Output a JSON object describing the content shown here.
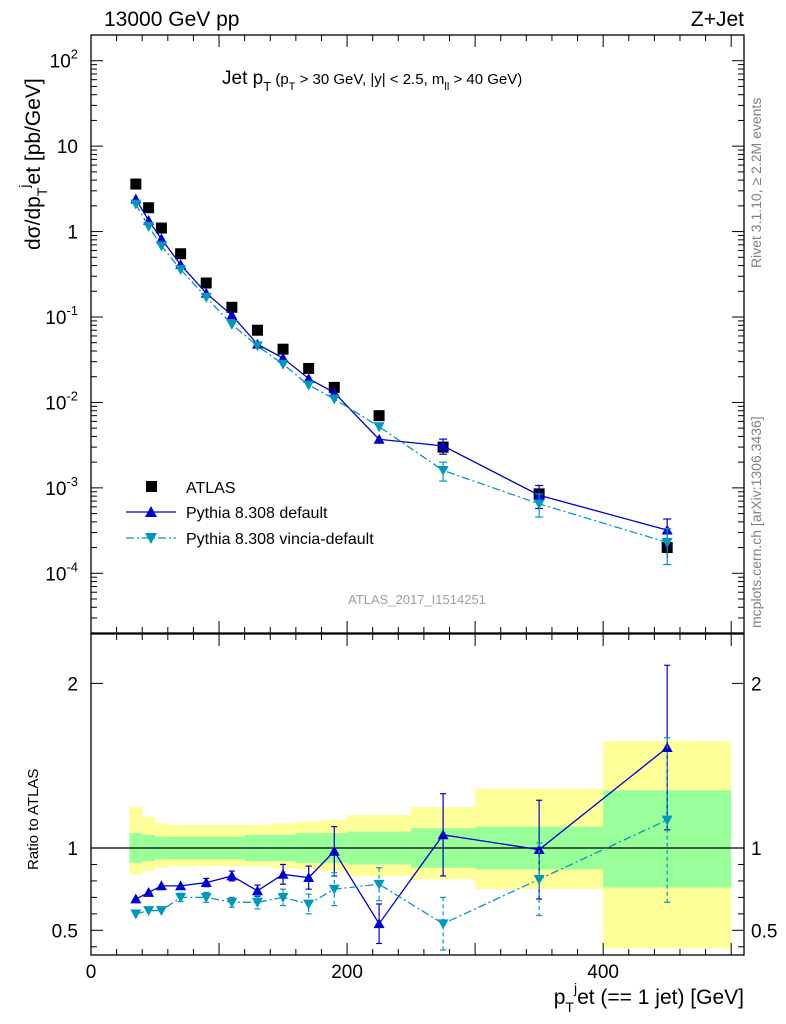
{
  "header": {
    "left": "13000 GeV pp",
    "right": "Z+Jet"
  },
  "side_labels": {
    "rivet": "Rivet 3.1.10, ≥ 2.2M events",
    "mcplots": "mcplots.cern.ch [arXiv:1306.3436]"
  },
  "watermark": "ATLAS_2017_I1514251",
  "colors": {
    "atlas": "#000000",
    "pythia_default": "#0000cc",
    "pythia_vincia": "#0099bb",
    "band_yellow": "#ffff99",
    "band_green": "#99ff99"
  },
  "chart_data": [
    {
      "type": "scatter",
      "panel": "main",
      "title": "Jet pT (pT > 30 GeV, |y| < 2.5, mll > 40 GeV)",
      "ylabel": "dσ/dpT j et [pb/GeV]",
      "yscale": "log",
      "xlim": [
        0,
        510
      ],
      "ylim": [
        2e-05,
        200
      ],
      "ytick_labels": [
        "10^-4",
        "10^-3",
        "10^-2",
        "10^-1",
        "1",
        "10",
        "10^2"
      ],
      "legend_position": "bottom-left",
      "x": [
        35,
        45,
        55,
        70,
        90,
        110,
        130,
        150,
        170,
        190,
        225,
        275,
        350,
        450
      ],
      "series": [
        {
          "name": "ATLAS",
          "marker": "square",
          "values": [
            3.6,
            1.9,
            1.1,
            0.55,
            0.25,
            0.13,
            0.07,
            0.042,
            0.025,
            0.015,
            0.007,
            0.003,
            0.00085,
            0.0002
          ],
          "yerr": [
            0.05,
            0.05,
            0.05,
            0.05,
            0.05,
            0.05,
            0.05,
            0.05,
            0.05,
            0.05,
            0.05,
            0.1,
            0.15,
            0.25
          ]
        },
        {
          "name": "Pythia 8.308 default",
          "marker": "triangle-up",
          "linestyle": "solid",
          "values": [
            2.4,
            1.35,
            0.82,
            0.41,
            0.19,
            0.105,
            0.048,
            0.033,
            0.019,
            0.013,
            0.0037,
            0.0031,
            0.00082,
            0.00032
          ],
          "yerr": [
            0.04,
            0.04,
            0.04,
            0.04,
            0.05,
            0.05,
            0.06,
            0.07,
            0.08,
            0.1,
            0.12,
            0.2,
            0.3,
            0.35
          ]
        },
        {
          "name": "Pythia 8.308 vincia-default",
          "marker": "triangle-down",
          "linestyle": "dashdot",
          "values": [
            2.1,
            1.15,
            0.68,
            0.36,
            0.17,
            0.082,
            0.046,
            0.028,
            0.016,
            0.011,
            0.0052,
            0.0016,
            0.00065,
            0.00023
          ],
          "yerr": [
            0.04,
            0.04,
            0.04,
            0.04,
            0.05,
            0.05,
            0.06,
            0.07,
            0.08,
            0.1,
            0.12,
            0.25,
            0.3,
            0.45
          ]
        }
      ]
    },
    {
      "type": "scatter",
      "panel": "ratio",
      "ylabel": "Ratio to ATLAS",
      "xlabel": "pT j et (== 1 jet) [GeV]",
      "xlim": [
        0,
        510
      ],
      "ylim": [
        0.35,
        2.3
      ],
      "xtick_labels": [
        "0",
        "200",
        "400"
      ],
      "ytick_labels": [
        "0.5",
        "1",
        "2"
      ],
      "reference_line": 1,
      "bands": {
        "edges": [
          30,
          40,
          50,
          60,
          80,
          100,
          120,
          140,
          160,
          180,
          200,
          250,
          300,
          400,
          500
        ],
        "green_low": [
          0.91,
          0.92,
          0.93,
          0.93,
          0.93,
          0.93,
          0.92,
          0.92,
          0.91,
          0.91,
          0.9,
          0.88,
          0.87,
          0.76
        ],
        "green_high": [
          1.09,
          1.08,
          1.07,
          1.07,
          1.07,
          1.07,
          1.08,
          1.08,
          1.09,
          1.09,
          1.1,
          1.12,
          1.13,
          1.35
        ],
        "yellow_low": [
          0.84,
          0.86,
          0.88,
          0.89,
          0.89,
          0.89,
          0.89,
          0.88,
          0.87,
          0.86,
          0.83,
          0.81,
          0.75,
          0.39
        ],
        "yellow_high": [
          1.25,
          1.19,
          1.15,
          1.14,
          1.14,
          1.14,
          1.14,
          1.15,
          1.16,
          1.17,
          1.2,
          1.25,
          1.36,
          1.65
        ]
      },
      "x": [
        35,
        45,
        55,
        70,
        90,
        110,
        130,
        150,
        170,
        190,
        225,
        275,
        350,
        450
      ],
      "series": [
        {
          "name": "Pythia 8.308 default",
          "values": [
            0.69,
            0.73,
            0.77,
            0.77,
            0.79,
            0.83,
            0.74,
            0.84,
            0.82,
            0.98,
            0.54,
            1.08,
            0.99,
            1.61
          ],
          "yerr": [
            0.015,
            0.015,
            0.02,
            0.02,
            0.025,
            0.03,
            0.035,
            0.06,
            0.07,
            0.15,
            0.12,
            0.25,
            0.3,
            0.5
          ]
        },
        {
          "name": "Pythia 8.308 vincia-default",
          "values": [
            0.6,
            0.62,
            0.62,
            0.7,
            0.7,
            0.67,
            0.67,
            0.7,
            0.66,
            0.75,
            0.78,
            0.54,
            0.81,
            1.17
          ],
          "yerr": [
            0.015,
            0.015,
            0.02,
            0.025,
            0.03,
            0.03,
            0.04,
            0.05,
            0.06,
            0.1,
            0.1,
            0.16,
            0.22,
            0.5
          ]
        }
      ]
    }
  ]
}
